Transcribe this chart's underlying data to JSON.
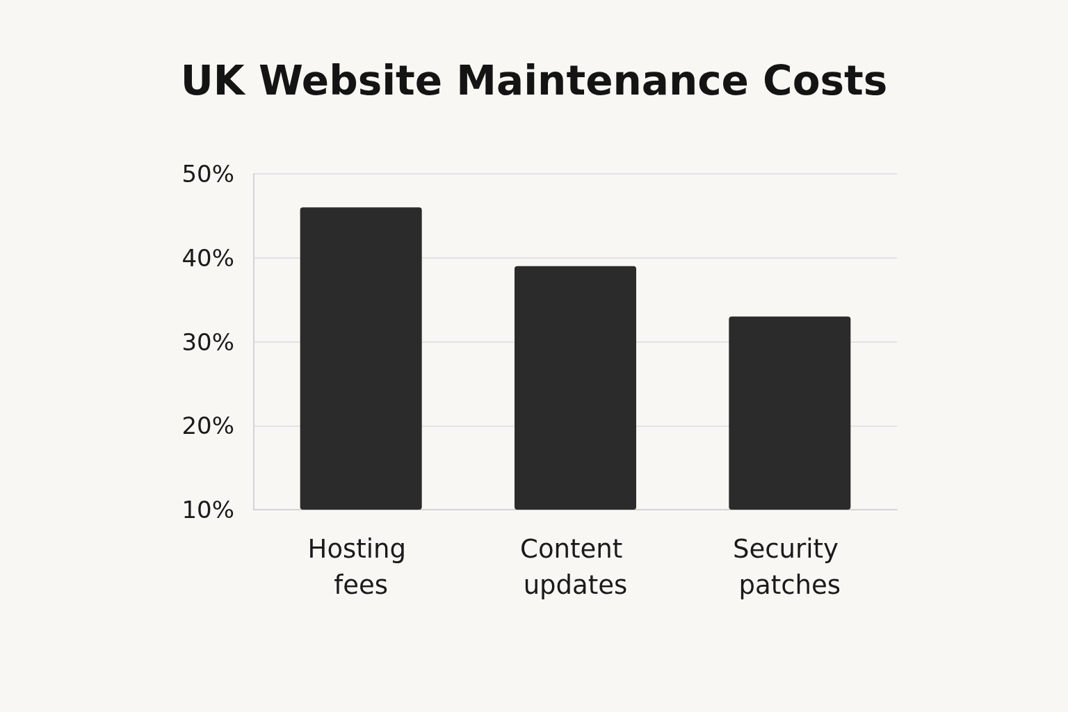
{
  "chart_data": {
    "type": "bar",
    "title": "UK Website Maintenance Costs",
    "categories": [
      "Hosting fees",
      "Content updates",
      "Security patches"
    ],
    "values": [
      46,
      39,
      33
    ],
    "color": "#2b2b2b",
    "ylim": [
      10,
      50
    ],
    "yticks": [
      {
        "value": 10,
        "label": "10%"
      },
      {
        "value": 20,
        "label": "20%"
      },
      {
        "value": 30,
        "label": "30%"
      },
      {
        "value": 40,
        "label": "40%"
      },
      {
        "value": 50,
        "label": "50%"
      }
    ],
    "grid": "y"
  }
}
